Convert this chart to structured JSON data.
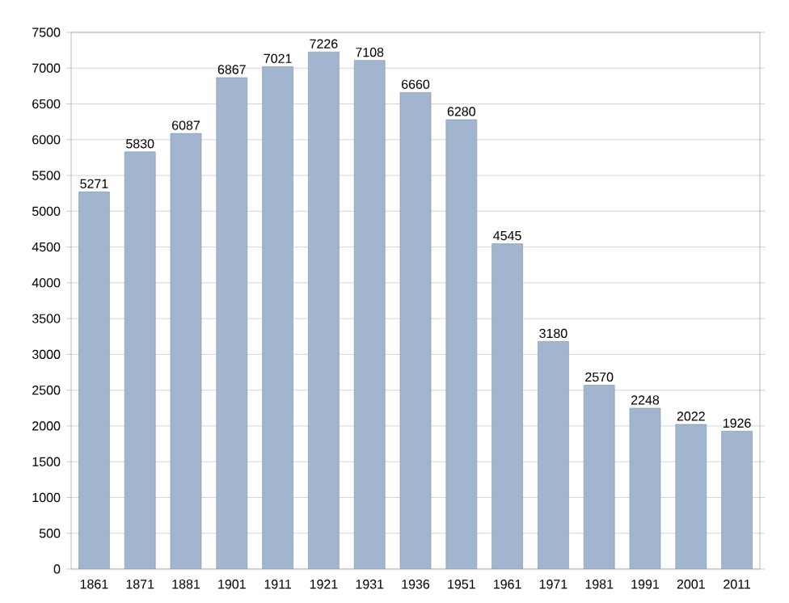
{
  "chart_data": {
    "type": "bar",
    "categories": [
      "1861",
      "1871",
      "1881",
      "1901",
      "1911",
      "1921",
      "1931",
      "1936",
      "1951",
      "1961",
      "1971",
      "1981",
      "1991",
      "2001",
      "2011"
    ],
    "values": [
      5271,
      5830,
      6087,
      6867,
      7021,
      7226,
      7108,
      6660,
      6280,
      4545,
      3180,
      2570,
      2248,
      2022,
      1926
    ],
    "color": "#a1b5cf",
    "data_labels": true,
    "grid": "y",
    "ylim": [
      0,
      7500
    ],
    "yticks": [
      0,
      500,
      1000,
      1500,
      2000,
      2500,
      3000,
      3500,
      4000,
      4500,
      5000,
      5500,
      6000,
      6500,
      7000,
      7500
    ]
  }
}
